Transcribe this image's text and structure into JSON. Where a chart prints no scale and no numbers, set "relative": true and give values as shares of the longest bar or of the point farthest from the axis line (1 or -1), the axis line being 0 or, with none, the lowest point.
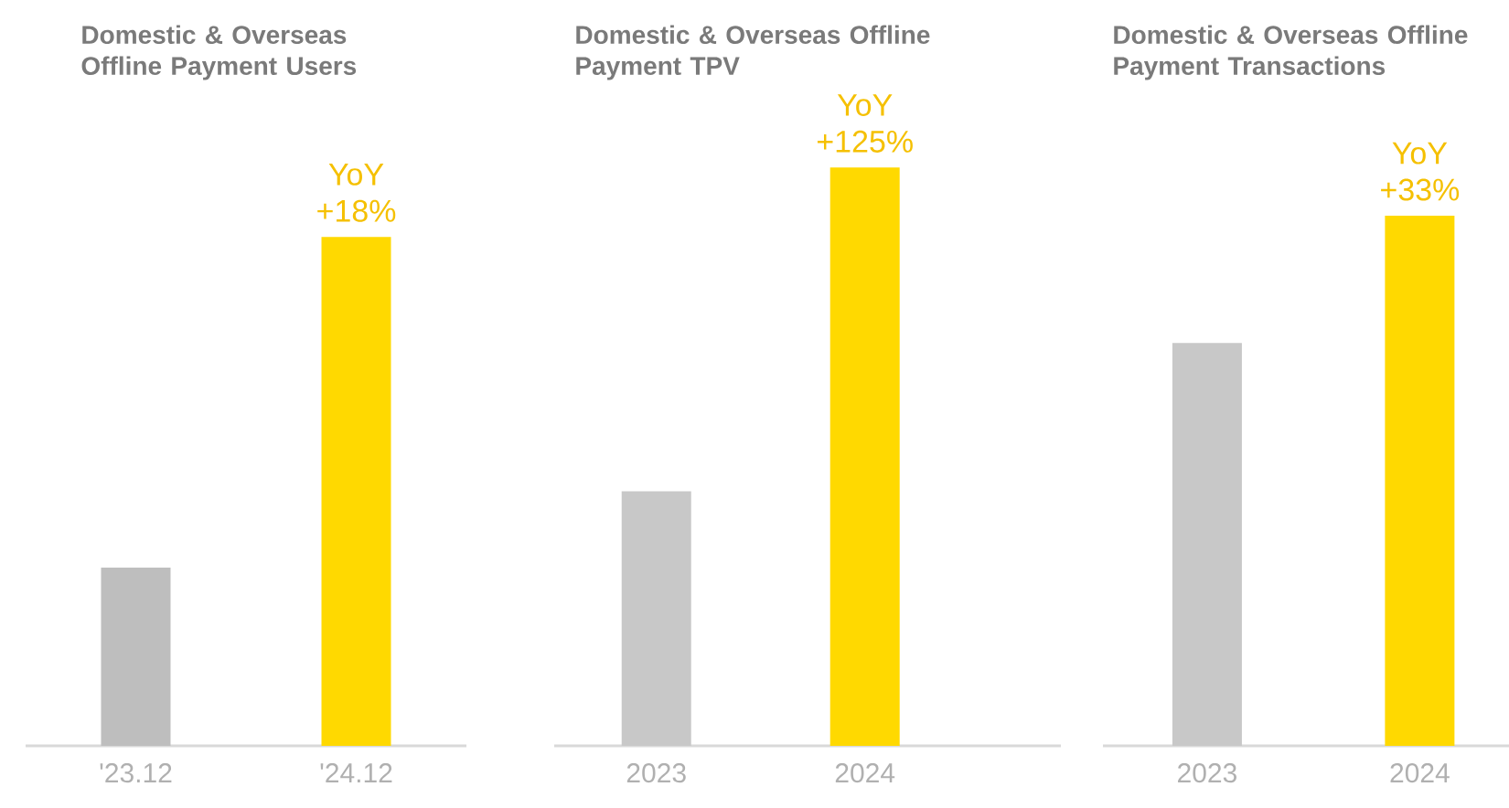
{
  "chart_data": [
    {
      "type": "bar",
      "title": "Domestic & Overseas Offline Payment Users",
      "categories": [
        "'23.12",
        "'24.12"
      ],
      "values": [
        0.35,
        1
      ],
      "colors": [
        "#bebebe",
        "#ffd900"
      ],
      "relative": true,
      "annotations": [
        {
          "text": "YoY +18%",
          "x": "'24.12",
          "y": 1
        }
      ]
    },
    {
      "type": "bar",
      "title": "Domestic & Overseas Offline Payment TPV",
      "categories": [
        "2023",
        "2024"
      ],
      "values": [
        0.44,
        1
      ],
      "colors": [
        "#c8c8c8",
        "#ffd900"
      ],
      "relative": true,
      "annotations": [
        {
          "text": "YoY +125%",
          "x": "2024",
          "y": 1
        }
      ]
    },
    {
      "type": "bar",
      "title": "Domestic & Overseas Offline Payment Transactions",
      "categories": [
        "2023",
        "2024"
      ],
      "values": [
        0.76,
        1
      ],
      "colors": [
        "#c8c8c8",
        "#ffd900"
      ],
      "relative": true,
      "annotations": [
        {
          "text": "YoY +33%",
          "x": "2024",
          "y": 1
        }
      ]
    }
  ]
}
